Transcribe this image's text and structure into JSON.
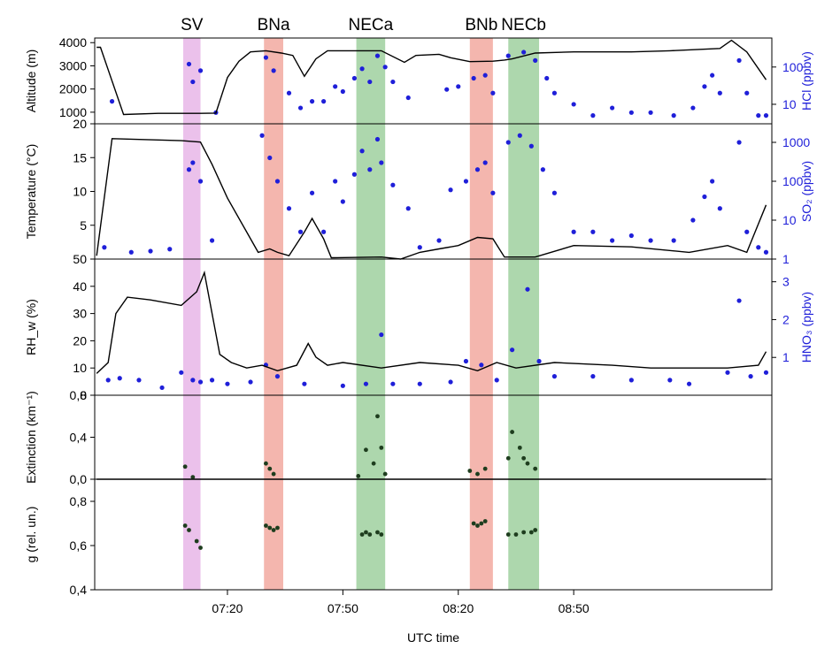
{
  "chart_data": {
    "type": "line",
    "xlabel": "UTC time",
    "x_ticks": [
      "07:20",
      "07:50",
      "08:20",
      "08:50"
    ],
    "x_tick_minutes": [
      440,
      470,
      500,
      530
    ],
    "x_range_minutes": [
      405.5,
      581.5
    ],
    "bands": [
      {
        "label": "SV",
        "start": 428.5,
        "end": 433,
        "color": "#e7b6e7"
      },
      {
        "label": "BNa",
        "start": 449.5,
        "end": 454.5,
        "color": "#f2a9a0"
      },
      {
        "label": "NECa",
        "start": 473.5,
        "end": 481,
        "color": "#9fd09f"
      },
      {
        "label": "BNb",
        "start": 503,
        "end": 509,
        "color": "#f2a9a0"
      },
      {
        "label": "NECb",
        "start": 513,
        "end": 521,
        "color": "#9fd09f"
      }
    ],
    "panels": [
      {
        "name": "altitude",
        "ylabel": "Altitude (m)",
        "yticks": [
          "1000",
          "2000",
          "3000",
          "4000"
        ],
        "ytick_values": [
          1000,
          2000,
          3000,
          4000
        ],
        "ylim": [
          500,
          4200
        ],
        "series_color": "#000000",
        "series": [
          [
            406,
            3800
          ],
          [
            407,
            3800
          ],
          [
            413,
            900
          ],
          [
            422,
            950
          ],
          [
            428,
            950
          ],
          [
            433,
            950
          ],
          [
            437,
            960
          ],
          [
            440,
            2500
          ],
          [
            443,
            3200
          ],
          [
            446,
            3600
          ],
          [
            450,
            3650
          ],
          [
            454,
            3550
          ],
          [
            457,
            3450
          ],
          [
            460,
            2550
          ],
          [
            463,
            3300
          ],
          [
            466,
            3650
          ],
          [
            480,
            3650
          ],
          [
            486,
            3150
          ],
          [
            489,
            3450
          ],
          [
            495,
            3500
          ],
          [
            498,
            3350
          ],
          [
            503,
            3180
          ],
          [
            509,
            3200
          ],
          [
            512,
            3250
          ],
          [
            514,
            3300
          ],
          [
            520,
            3550
          ],
          [
            530,
            3600
          ],
          [
            545,
            3600
          ],
          [
            555,
            3650
          ],
          [
            568,
            3750
          ],
          [
            571,
            4100
          ],
          [
            575,
            3600
          ],
          [
            580,
            2400
          ]
        ],
        "right_axis": {
          "label": "HCl (ppbv)",
          "scale": "log",
          "ticks": [
            "10",
            "100"
          ],
          "tick_values": [
            10,
            100
          ],
          "ylim": [
            3,
            600
          ],
          "color": "#1f1fd9"
        },
        "markers": [
          [
            410,
            12
          ],
          [
            430,
            120
          ],
          [
            431,
            40
          ],
          [
            433,
            80
          ],
          [
            437,
            6
          ],
          [
            450,
            180
          ],
          [
            452,
            80
          ],
          [
            456,
            20
          ],
          [
            459,
            8
          ],
          [
            462,
            12
          ],
          [
            465,
            12
          ],
          [
            468,
            30
          ],
          [
            470,
            22
          ],
          [
            473,
            50
          ],
          [
            475,
            90
          ],
          [
            477,
            40
          ],
          [
            479,
            200
          ],
          [
            481,
            100
          ],
          [
            483,
            40
          ],
          [
            487,
            15
          ],
          [
            497,
            25
          ],
          [
            500,
            30
          ],
          [
            504,
            50
          ],
          [
            507,
            60
          ],
          [
            509,
            20
          ],
          [
            513,
            200
          ],
          [
            517,
            250
          ],
          [
            520,
            150
          ],
          [
            523,
            50
          ],
          [
            525,
            20
          ],
          [
            530,
            10
          ],
          [
            535,
            5
          ],
          [
            540,
            8
          ],
          [
            545,
            6
          ],
          [
            550,
            6
          ],
          [
            556,
            5
          ],
          [
            561,
            8
          ],
          [
            564,
            30
          ],
          [
            566,
            60
          ],
          [
            568,
            20
          ],
          [
            573,
            150
          ],
          [
            575,
            20
          ],
          [
            578,
            5
          ],
          [
            580,
            5
          ]
        ]
      },
      {
        "name": "temperature",
        "ylabel": "Temperature (°C)",
        "yticks": [
          "5",
          "10",
          "15",
          "20"
        ],
        "ytick_values": [
          5,
          10,
          15,
          20
        ],
        "ylim": [
          0,
          20
        ],
        "series_color": "#000000",
        "series": [
          [
            406,
            0.5
          ],
          [
            410,
            17.8
          ],
          [
            428,
            17.5
          ],
          [
            433,
            17.3
          ],
          [
            436,
            14
          ],
          [
            440,
            9
          ],
          [
            445,
            4
          ],
          [
            448,
            1
          ],
          [
            451,
            1.5
          ],
          [
            453,
            1
          ],
          [
            456,
            0.5
          ],
          [
            460,
            4
          ],
          [
            462,
            6
          ],
          [
            465,
            3
          ],
          [
            467,
            0.2
          ],
          [
            480,
            0.3
          ],
          [
            485,
            -0.5
          ],
          [
            490,
            1
          ],
          [
            495,
            1.5
          ],
          [
            500,
            2
          ],
          [
            505,
            3.2
          ],
          [
            509,
            3
          ],
          [
            512,
            0.3
          ],
          [
            520,
            0.3
          ],
          [
            530,
            2
          ],
          [
            545,
            1.8
          ],
          [
            560,
            1
          ],
          [
            570,
            2
          ],
          [
            575,
            1
          ],
          [
            580,
            8
          ]
        ],
        "right_axis": {
          "label": "SO₂ (ppbv)",
          "scale": "log",
          "ticks": [
            "1",
            "10",
            "100",
            "1000"
          ],
          "tick_values": [
            1,
            10,
            100,
            1000
          ],
          "ylim": [
            1,
            3000
          ],
          "color": "#1f1fd9"
        },
        "markers": [
          [
            408,
            2
          ],
          [
            415,
            1.5
          ],
          [
            420,
            1.6
          ],
          [
            425,
            1.8
          ],
          [
            430,
            200
          ],
          [
            431,
            300
          ],
          [
            433,
            100
          ],
          [
            436,
            3
          ],
          [
            449,
            1500
          ],
          [
            451,
            400
          ],
          [
            453,
            100
          ],
          [
            456,
            20
          ],
          [
            459,
            5
          ],
          [
            462,
            50
          ],
          [
            465,
            5
          ],
          [
            468,
            100
          ],
          [
            470,
            30
          ],
          [
            473,
            150
          ],
          [
            475,
            600
          ],
          [
            477,
            200
          ],
          [
            479,
            1200
          ],
          [
            480,
            300
          ],
          [
            483,
            80
          ],
          [
            487,
            20
          ],
          [
            490,
            2
          ],
          [
            495,
            3
          ],
          [
            498,
            60
          ],
          [
            502,
            100
          ],
          [
            505,
            200
          ],
          [
            507,
            300
          ],
          [
            509,
            50
          ],
          [
            513,
            1000
          ],
          [
            516,
            1500
          ],
          [
            519,
            800
          ],
          [
            522,
            200
          ],
          [
            525,
            50
          ],
          [
            530,
            5
          ],
          [
            535,
            5
          ],
          [
            540,
            3
          ],
          [
            545,
            4
          ],
          [
            550,
            3
          ],
          [
            556,
            3
          ],
          [
            561,
            10
          ],
          [
            564,
            40
          ],
          [
            566,
            100
          ],
          [
            568,
            20
          ],
          [
            573,
            1000
          ],
          [
            575,
            5
          ],
          [
            578,
            2
          ],
          [
            580,
            1.5
          ]
        ]
      },
      {
        "name": "rh",
        "ylabel": "RH_w (%)",
        "yticks": [
          "0",
          "10",
          "20",
          "30",
          "40",
          "50"
        ],
        "ytick_values": [
          0,
          10,
          20,
          30,
          40,
          50
        ],
        "ylim": [
          0,
          50
        ],
        "series_color": "#000000",
        "series": [
          [
            406,
            8
          ],
          [
            409,
            12
          ],
          [
            411,
            30
          ],
          [
            414,
            36
          ],
          [
            420,
            35
          ],
          [
            428,
            33
          ],
          [
            432,
            38
          ],
          [
            434,
            45
          ],
          [
            436,
            30
          ],
          [
            438,
            15
          ],
          [
            441,
            12
          ],
          [
            445,
            10
          ],
          [
            449,
            11
          ],
          [
            453,
            9
          ],
          [
            458,
            11
          ],
          [
            461,
            19
          ],
          [
            463,
            14
          ],
          [
            466,
            11
          ],
          [
            470,
            12
          ],
          [
            480,
            10
          ],
          [
            490,
            12
          ],
          [
            500,
            11
          ],
          [
            505,
            9
          ],
          [
            510,
            12
          ],
          [
            515,
            10
          ],
          [
            525,
            12
          ],
          [
            540,
            11
          ],
          [
            550,
            10
          ],
          [
            560,
            10
          ],
          [
            570,
            10
          ],
          [
            578,
            11
          ],
          [
            580,
            16
          ]
        ],
        "right_axis": {
          "label": "HNO₃ (ppbv)",
          "scale": "linear",
          "ticks": [
            "1",
            "2",
            "3"
          ],
          "tick_values": [
            1,
            2,
            3
          ],
          "ylim": [
            0,
            3.6
          ],
          "color": "#1f1fd9"
        },
        "markers": [
          [
            409,
            0.4
          ],
          [
            412,
            0.45
          ],
          [
            417,
            0.4
          ],
          [
            423,
            0.2
          ],
          [
            428,
            0.6
          ],
          [
            431,
            0.4
          ],
          [
            433,
            0.35
          ],
          [
            436,
            0.4
          ],
          [
            440,
            0.3
          ],
          [
            446,
            0.35
          ],
          [
            450,
            0.8
          ],
          [
            453,
            0.5
          ],
          [
            460,
            0.3
          ],
          [
            470,
            0.25
          ],
          [
            476,
            0.3
          ],
          [
            480,
            1.6
          ],
          [
            483,
            0.3
          ],
          [
            490,
            0.3
          ],
          [
            498,
            0.35
          ],
          [
            502,
            0.9
          ],
          [
            506,
            0.8
          ],
          [
            510,
            0.4
          ],
          [
            514,
            1.2
          ],
          [
            518,
            2.8
          ],
          [
            521,
            0.9
          ],
          [
            525,
            0.5
          ],
          [
            535,
            0.5
          ],
          [
            545,
            0.4
          ],
          [
            555,
            0.4
          ],
          [
            560,
            0.3
          ],
          [
            570,
            0.6
          ],
          [
            573,
            2.5
          ],
          [
            576,
            0.5
          ],
          [
            580,
            0.6
          ]
        ]
      },
      {
        "name": "extinction",
        "ylabel": "Extinction (km⁻¹)",
        "yticks": [
          "0,0",
          "0,4",
          "0,8"
        ],
        "ytick_values": [
          0,
          0.4,
          0.8
        ],
        "ylim": [
          0,
          0.8
        ],
        "series_color": "#000000",
        "series": [
          [
            406,
            0.0
          ],
          [
            580,
            0.0
          ]
        ],
        "dots": [
          [
            429,
            0.12
          ],
          [
            431,
            0.02
          ],
          [
            450,
            0.15
          ],
          [
            451,
            0.1
          ],
          [
            452,
            0.05
          ],
          [
            474,
            0.03
          ],
          [
            476,
            0.28
          ],
          [
            478,
            0.15
          ],
          [
            479,
            0.6
          ],
          [
            480,
            0.3
          ],
          [
            481,
            0.05
          ],
          [
            503,
            0.08
          ],
          [
            505,
            0.05
          ],
          [
            507,
            0.1
          ],
          [
            513,
            0.2
          ],
          [
            514,
            0.45
          ],
          [
            516,
            0.3
          ],
          [
            517,
            0.2
          ],
          [
            518,
            0.15
          ],
          [
            520,
            0.1
          ]
        ]
      },
      {
        "name": "g",
        "ylabel": "g (rel. un.)",
        "yticks": [
          "0,4",
          "0,6",
          "0,8"
        ],
        "ytick_values": [
          0.4,
          0.6,
          0.8
        ],
        "ylim": [
          0.4,
          0.9
        ],
        "dots": [
          [
            429,
            0.69
          ],
          [
            430,
            0.67
          ],
          [
            432,
            0.62
          ],
          [
            433,
            0.59
          ],
          [
            450,
            0.69
          ],
          [
            451,
            0.68
          ],
          [
            452,
            0.67
          ],
          [
            453,
            0.68
          ],
          [
            475,
            0.65
          ],
          [
            476,
            0.66
          ],
          [
            477,
            0.65
          ],
          [
            479,
            0.66
          ],
          [
            480,
            0.65
          ],
          [
            504,
            0.7
          ],
          [
            505,
            0.69
          ],
          [
            506,
            0.7
          ],
          [
            507,
            0.71
          ],
          [
            513,
            0.65
          ],
          [
            515,
            0.65
          ],
          [
            517,
            0.66
          ],
          [
            519,
            0.66
          ],
          [
            520,
            0.67
          ]
        ]
      }
    ]
  }
}
